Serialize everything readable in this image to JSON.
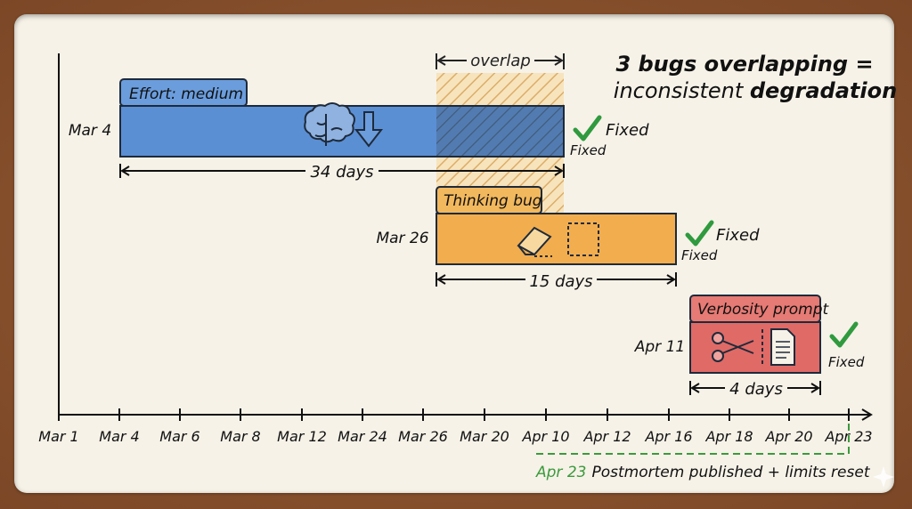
{
  "title": {
    "line1": "3 bugs overlapping =",
    "line2_prefix": "inconsistent ",
    "line2_bold": "degradation"
  },
  "overlap": {
    "label": "overlap"
  },
  "bars": [
    {
      "id": "effort",
      "tab_label": "Effort: medium",
      "start_label": "Mar 4",
      "duration_label": "34 days",
      "status": "Fixed",
      "status_small": "Fixed",
      "color": "#5b8fd4",
      "tab_color": "#6b9ddd",
      "icons": [
        "brain-icon",
        "down-arrow-icon"
      ]
    },
    {
      "id": "thinking",
      "tab_label": "Thinking bug",
      "start_label": "Mar 26",
      "duration_label": "15 days",
      "status": "Fixed",
      "status_small": "Fixed",
      "color": "#f2ad4e",
      "tab_color": "#f2b85d",
      "icons": [
        "eraser-icon",
        "dashed-box-icon"
      ]
    },
    {
      "id": "verbosity",
      "tab_label": "Verbosity prompt",
      "start_label": "Apr 11",
      "duration_label": "4 days",
      "status": "",
      "status_small": "Fixed",
      "color": "#e06a66",
      "tab_color": "#e67a74",
      "icons": [
        "scissors-icon",
        "document-icon"
      ]
    }
  ],
  "axis": {
    "ticks": [
      "Mar 1",
      "Mar 4",
      "Mar 6",
      "Mar 8",
      "Mar 12",
      "Mar 24",
      "Mar 26",
      "Mar 20",
      "Apr 10",
      "Apr 12",
      "Apr 16",
      "Apr 18",
      "Apr 20",
      "Apr 23"
    ]
  },
  "footer": {
    "date": "Apr 23",
    "text": "Postmortem published + limits reset",
    "color": "#3c9a3c"
  }
}
